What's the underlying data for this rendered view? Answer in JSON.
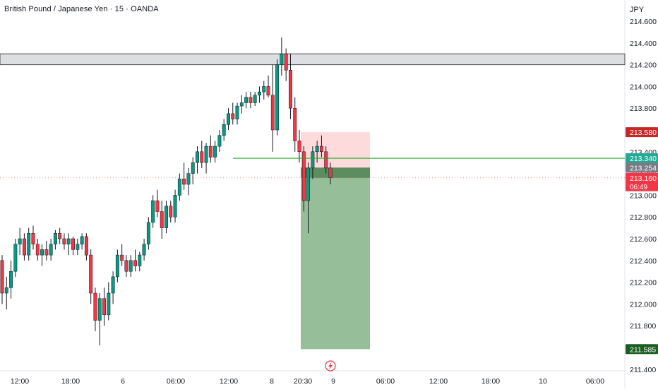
{
  "header": {
    "title": "British Pound / Japanese Yen · 15 · OANDA"
  },
  "axis": {
    "currency": "JPY"
  },
  "chart_data": {
    "type": "candlestick",
    "title": "British Pound / Japanese Yen · 15 · OANDA",
    "ylabel": "JPY",
    "ylim": [
      211.3,
      214.75
    ],
    "y_ticks": [
      "214.600",
      "214.400",
      "214.200",
      "214.000",
      "213.800",
      "213.600",
      "213.400",
      "213.200",
      "213.000",
      "212.800",
      "212.600",
      "212.400",
      "212.200",
      "212.000",
      "211.800",
      "211.600",
      "211.400"
    ],
    "x_tick_labels": [
      "12:00",
      "18:00",
      "6",
      "06:00",
      "12:00",
      "8",
      "20:30",
      "9",
      "06:00",
      "12:00",
      "18:00",
      "10",
      "06:00"
    ],
    "resistance_zone": [
      214.2,
      214.3
    ],
    "horizontal_line": 213.34,
    "current_price_line": 213.16,
    "trade_box": {
      "entry": 213.254,
      "stop": 213.58,
      "target": 211.585
    },
    "price_labels": [
      {
        "text": "213.580",
        "value": 213.58,
        "color": "#c62828"
      },
      {
        "text": "213.340",
        "value": 213.34,
        "color": "#22ab94"
      },
      {
        "text": "213.254",
        "value": 213.254,
        "color": "#787b86"
      },
      {
        "text": "213.160",
        "value": 213.16,
        "color": "#f23645",
        "sub": "06:49"
      },
      {
        "text": "211.585",
        "value": 211.585,
        "color": "#1b5e20"
      }
    ],
    "candles": [
      [
        212.4,
        212.45,
        212.0,
        212.1
      ],
      [
        212.1,
        212.25,
        211.95,
        212.15
      ],
      [
        212.15,
        212.4,
        212.05,
        212.3
      ],
      [
        212.3,
        212.6,
        212.25,
        212.55
      ],
      [
        212.55,
        212.7,
        212.45,
        212.6
      ],
      [
        212.6,
        212.65,
        212.4,
        212.45
      ],
      [
        212.45,
        212.7,
        212.4,
        212.65
      ],
      [
        212.65,
        212.72,
        212.5,
        212.55
      ],
      [
        212.55,
        212.6,
        212.4,
        212.45
      ],
      [
        212.45,
        212.55,
        212.35,
        212.5
      ],
      [
        212.5,
        212.58,
        212.4,
        212.45
      ],
      [
        212.45,
        212.6,
        212.4,
        212.55
      ],
      [
        212.55,
        212.68,
        212.5,
        212.65
      ],
      [
        212.65,
        212.7,
        212.55,
        212.6
      ],
      [
        212.6,
        212.65,
        212.5,
        212.55
      ],
      [
        212.55,
        212.65,
        212.45,
        212.6
      ],
      [
        212.6,
        212.62,
        212.45,
        212.5
      ],
      [
        212.5,
        212.6,
        212.45,
        212.55
      ],
      [
        212.55,
        212.65,
        212.5,
        212.62
      ],
      [
        212.62,
        212.65,
        212.4,
        212.45
      ],
      [
        212.45,
        212.5,
        212.0,
        212.1
      ],
      [
        212.1,
        212.15,
        211.75,
        211.85
      ],
      [
        211.85,
        212.1,
        211.62,
        212.05
      ],
      [
        212.05,
        212.15,
        211.8,
        211.9
      ],
      [
        211.9,
        212.2,
        211.85,
        212.1
      ],
      [
        212.1,
        212.3,
        212.0,
        212.25
      ],
      [
        212.25,
        212.5,
        212.2,
        212.45
      ],
      [
        212.45,
        212.55,
        212.35,
        212.4
      ],
      [
        212.4,
        212.45,
        212.25,
        212.3
      ],
      [
        212.3,
        212.45,
        212.25,
        212.4
      ],
      [
        212.4,
        212.5,
        212.3,
        212.35
      ],
      [
        212.35,
        212.48,
        212.3,
        212.45
      ],
      [
        212.45,
        212.6,
        212.4,
        212.55
      ],
      [
        212.55,
        212.8,
        212.5,
        212.75
      ],
      [
        212.75,
        213.0,
        212.7,
        212.95
      ],
      [
        212.95,
        213.05,
        212.8,
        212.85
      ],
      [
        212.85,
        212.95,
        212.6,
        212.7
      ],
      [
        212.7,
        212.95,
        212.65,
        212.9
      ],
      [
        212.9,
        212.95,
        212.75,
        212.8
      ],
      [
        212.8,
        213.05,
        212.75,
        213.0
      ],
      [
        213.0,
        213.2,
        212.95,
        213.15
      ],
      [
        213.15,
        213.3,
        213.05,
        213.1
      ],
      [
        213.1,
        213.25,
        213.0,
        213.2
      ],
      [
        213.2,
        213.35,
        213.1,
        213.3
      ],
      [
        213.3,
        213.45,
        213.2,
        213.4
      ],
      [
        213.4,
        213.5,
        213.25,
        213.3
      ],
      [
        213.3,
        213.48,
        213.2,
        213.45
      ],
      [
        213.45,
        213.55,
        213.3,
        213.35
      ],
      [
        213.35,
        213.5,
        213.3,
        213.45
      ],
      [
        213.45,
        213.6,
        213.4,
        213.55
      ],
      [
        213.55,
        213.7,
        213.5,
        213.65
      ],
      [
        213.65,
        213.8,
        213.6,
        213.75
      ],
      [
        213.75,
        213.85,
        213.65,
        213.7
      ],
      [
        213.7,
        213.85,
        213.65,
        213.82
      ],
      [
        213.82,
        213.92,
        213.75,
        213.85
      ],
      [
        213.85,
        213.95,
        213.8,
        213.9
      ],
      [
        213.9,
        213.95,
        213.8,
        213.85
      ],
      [
        213.85,
        213.95,
        213.82,
        213.92
      ],
      [
        213.92,
        214.0,
        213.85,
        213.95
      ],
      [
        213.95,
        214.05,
        213.88,
        214.0
      ],
      [
        214.0,
        214.1,
        213.9,
        213.92
      ],
      [
        213.92,
        214.2,
        213.4,
        213.6
      ],
      [
        213.6,
        214.25,
        213.55,
        214.2
      ],
      [
        214.2,
        214.45,
        214.1,
        214.3
      ],
      [
        214.3,
        214.35,
        214.05,
        214.15
      ],
      [
        214.15,
        214.3,
        213.7,
        213.8
      ],
      [
        213.8,
        213.9,
        213.4,
        213.5
      ],
      [
        213.5,
        213.6,
        213.3,
        213.4
      ],
      [
        213.4,
        213.45,
        212.85,
        212.95
      ],
      [
        212.95,
        213.3,
        212.65,
        213.25
      ],
      [
        213.25,
        213.45,
        213.15,
        213.4
      ],
      [
        213.4,
        213.5,
        213.3,
        213.45
      ],
      [
        213.45,
        213.55,
        213.35,
        213.4
      ],
      [
        213.4,
        213.45,
        213.2,
        213.25
      ],
      [
        213.25,
        213.3,
        213.1,
        213.16
      ]
    ]
  }
}
